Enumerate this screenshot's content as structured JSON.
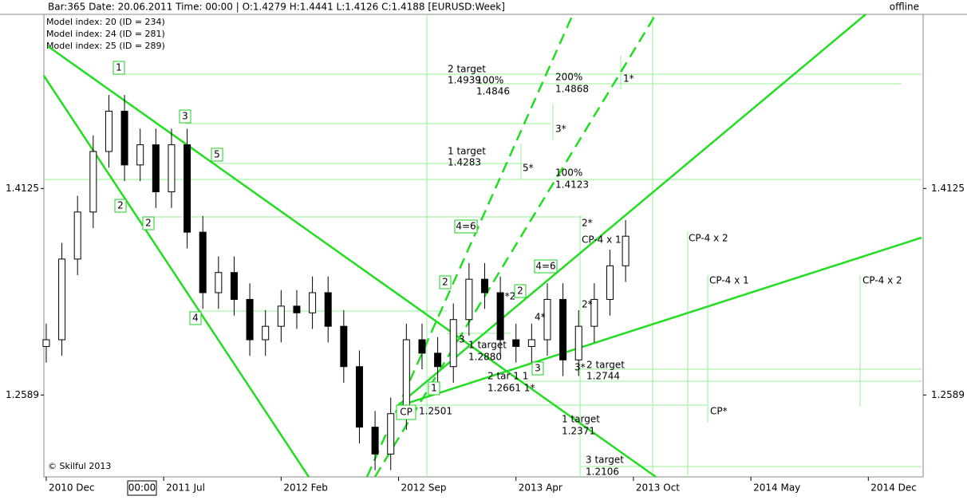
{
  "header": {
    "info": "Bar:365  Date:  20.06.2011  Time:  00:00  |  O:1.4279  H:1.4441  L:1.4126  C:1.4188   [EURUSD:Week]",
    "status": "offline",
    "models": [
      "Model index: 20  (ID = 234)",
      "Model index: 24  (ID = 281)",
      "Model index: 25  (ID = 289)"
    ],
    "copyright": "© Skilful 2013",
    "cursor_time": "00:00"
  },
  "chart_data": {
    "type": "candlestick",
    "x": [
      0,
      4,
      8,
      12,
      16,
      20,
      24,
      28,
      32,
      36,
      40,
      44,
      48,
      52,
      56,
      60,
      64,
      68,
      72,
      76,
      80,
      84,
      88,
      92,
      96,
      100,
      104,
      108,
      112,
      116,
      120,
      124,
      128,
      132,
      136,
      140,
      144,
      148
    ],
    "open": [
      1.295,
      1.3,
      1.36,
      1.395,
      1.44,
      1.47,
      1.43,
      1.445,
      1.41,
      1.445,
      1.38,
      1.335,
      1.35,
      1.33,
      1.3,
      1.31,
      1.325,
      1.32,
      1.335,
      1.31,
      1.28,
      1.235,
      1.215,
      1.245,
      1.3,
      1.29,
      1.28,
      1.315,
      1.345,
      1.335,
      1.3,
      1.295,
      1.3,
      1.33,
      1.285,
      1.31,
      1.33,
      1.355
    ],
    "high": [
      1.312,
      1.372,
      1.407,
      1.452,
      1.482,
      1.482,
      1.457,
      1.457,
      1.457,
      1.457,
      1.392,
      1.362,
      1.362,
      1.342,
      1.322,
      1.337,
      1.337,
      1.347,
      1.347,
      1.322,
      1.292,
      1.247,
      1.257,
      1.312,
      1.312,
      1.302,
      1.327,
      1.357,
      1.357,
      1.347,
      1.312,
      1.312,
      1.342,
      1.342,
      1.322,
      1.342,
      1.367,
      1.389
    ],
    "low": [
      1.283,
      1.288,
      1.348,
      1.383,
      1.428,
      1.418,
      1.418,
      1.398,
      1.398,
      1.368,
      1.323,
      1.323,
      1.318,
      1.288,
      1.288,
      1.298,
      1.308,
      1.308,
      1.298,
      1.268,
      1.223,
      1.203,
      1.203,
      1.233,
      1.278,
      1.268,
      1.268,
      1.303,
      1.323,
      1.288,
      1.283,
      1.283,
      1.288,
      1.273,
      1.273,
      1.298,
      1.318,
      1.343
    ],
    "close": [
      1.3,
      1.36,
      1.395,
      1.44,
      1.47,
      1.43,
      1.445,
      1.41,
      1.445,
      1.38,
      1.335,
      1.35,
      1.33,
      1.3,
      1.31,
      1.325,
      1.32,
      1.335,
      1.31,
      1.28,
      1.235,
      1.215,
      1.245,
      1.3,
      1.29,
      1.28,
      1.315,
      1.345,
      1.335,
      1.3,
      1.295,
      1.3,
      1.33,
      1.285,
      1.31,
      1.33,
      1.355,
      1.377
    ],
    "xlim": [
      -0.6,
      224
    ],
    "xticks": [
      {
        "value": 0,
        "label": "2010 Dec"
      },
      {
        "value": 30,
        "label": "2011 Jul"
      },
      {
        "value": 60,
        "label": "2012 Feb"
      },
      {
        "value": 90,
        "label": "2012 Sep"
      },
      {
        "value": 120,
        "label": "2013 Apr"
      },
      {
        "value": 150,
        "label": "2013 Oct"
      },
      {
        "value": 180,
        "label": "2014 May"
      },
      {
        "value": 210,
        "label": "2014 Dec"
      }
    ],
    "ylim": [
      1.198,
      1.542
    ],
    "yticks": [
      1.4125,
      1.2589
    ],
    "annotations": [
      "1",
      "2",
      "2",
      "3",
      "5",
      "4",
      "2 target",
      "1.4939",
      "100%",
      "1.4846",
      "200%",
      "1.4868",
      "1*",
      "3*",
      "1 target",
      "1.4283",
      "5*",
      "100%",
      "1.4123",
      "2*",
      "CP-4 x 1",
      "CP-4 x 2",
      "CP-4 x 1",
      "CP-4 x 2",
      "4=6",
      "4=6",
      "2",
      "2*2*",
      "2",
      "3",
      "1 target",
      "1.2880",
      "4*",
      "2*",
      "3",
      "3*",
      "1",
      "2 target",
      "1.2744",
      "2 tar 1 1",
      "1.2661 1*",
      "CP",
      "1.2501",
      "CP*",
      "1 target",
      "1.2371",
      "3 target",
      "1.2106"
    ]
  }
}
